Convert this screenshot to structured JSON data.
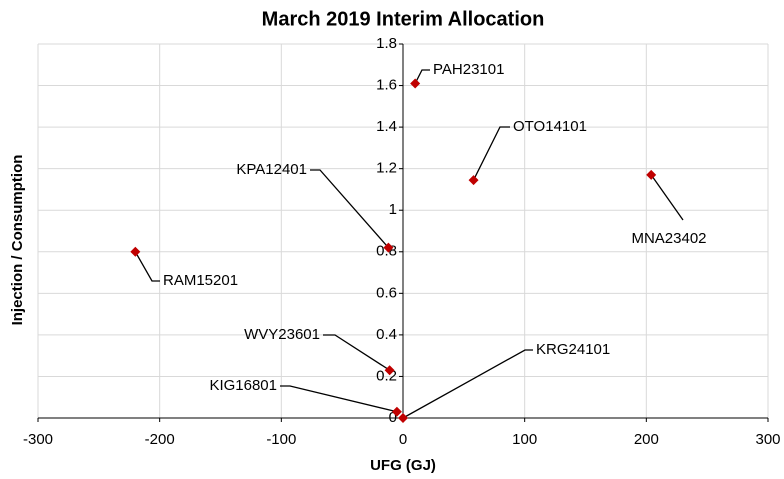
{
  "chart_data": {
    "type": "scatter",
    "title": "March 2019 Interim Allocation",
    "xlabel": "UFG (GJ)",
    "ylabel": "Injection / Consumption",
    "series": [
      {
        "color": "#c00000",
        "labels": [
          "PAH23101",
          "OTO14101",
          "MNA23402",
          "KPA12401",
          "RAM15201",
          "WVY23601",
          "KIG16801",
          "KRG24101"
        ],
        "x": [
          10,
          58,
          204,
          -12,
          -220,
          -11,
          -5,
          0
        ],
        "values": [
          1.61,
          1.145,
          1.17,
          0.82,
          0.8,
          0.23,
          0.03,
          0
        ]
      }
    ],
    "xlim": [
      -300,
      300
    ],
    "xticks": [
      -300,
      -200,
      -100,
      0,
      100,
      200,
      300
    ],
    "ylim": [
      0,
      1.8
    ],
    "yticks": [
      0,
      0.2,
      0.4,
      0.6,
      0.8,
      1,
      1.2,
      1.4,
      1.6,
      1.8
    ],
    "grid": true
  }
}
